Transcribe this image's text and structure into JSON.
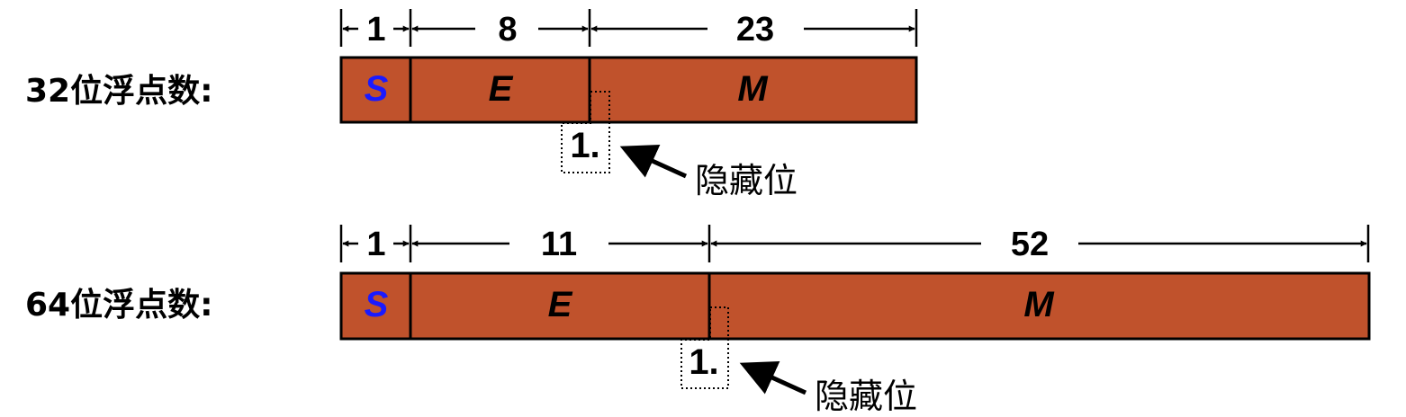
{
  "colors": {
    "field_fill": "#c0522c",
    "sign_text": "#1a1aff",
    "field_text": "#000000",
    "line": "#000000"
  },
  "rows": [
    {
      "label": "32位浮点数:",
      "fields": [
        {
          "name": "S",
          "bits": "1"
        },
        {
          "name": "E",
          "bits": "8"
        },
        {
          "name": "M",
          "bits": "23"
        }
      ],
      "hidden_bit_text": "1.",
      "callout": "隐藏位"
    },
    {
      "label": "64位浮点数:",
      "fields": [
        {
          "name": "S",
          "bits": "1"
        },
        {
          "name": "E",
          "bits": "11"
        },
        {
          "name": "M",
          "bits": "52"
        }
      ],
      "hidden_bit_text": "1.",
      "callout": "隐藏位"
    }
  ]
}
